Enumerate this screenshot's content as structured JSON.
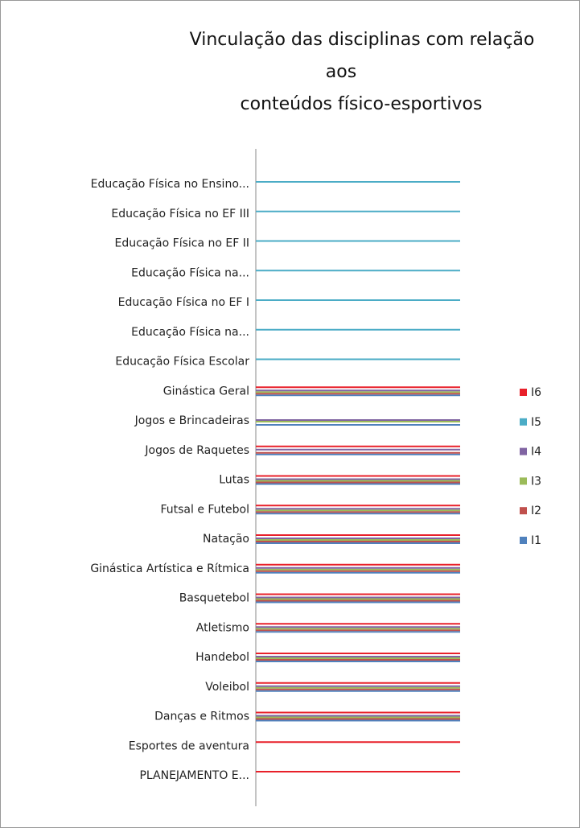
{
  "chart_data": {
    "type": "bar",
    "title": [
      "Vinculação das disciplinas com relação",
      "aos",
      "conteúdos físico-esportivos"
    ],
    "categories": [
      "Educação Física no Ensino...",
      "Educação Física no EF III",
      "Educação Física no EF II",
      "Educação Física na...",
      "Educação Física no EF I",
      "Educação Física na...",
      "Educação Física Escolar",
      "Ginástica Geral",
      "Jogos e Brincadeiras",
      "Jogos de Raquetes",
      "Lutas",
      "Futsal e Futebol",
      "Natação",
      "Ginástica Artística e Rítmica",
      "Basquetebol",
      "Atletismo",
      "Handebol",
      "Voleibol",
      "Danças e Ritmos",
      "Esportes de aventura",
      "PLANEJAMENTO E..."
    ],
    "series": [
      {
        "name": "I1",
        "color": "#4f81bd",
        "values": [
          0,
          0,
          0,
          0,
          0,
          0,
          0,
          1,
          1,
          1,
          1,
          1,
          1,
          1,
          1,
          1,
          1,
          1,
          1,
          0,
          0
        ]
      },
      {
        "name": "I2",
        "color": "#c0504d",
        "values": [
          0,
          0,
          0,
          0,
          0,
          0,
          0,
          1,
          0,
          1,
          1,
          1,
          1,
          1,
          1,
          1,
          1,
          1,
          1,
          0,
          0
        ]
      },
      {
        "name": "I3",
        "color": "#9bbb59",
        "values": [
          0,
          0,
          0,
          0,
          0,
          0,
          0,
          1,
          1,
          0,
          1,
          1,
          1,
          1,
          1,
          1,
          1,
          1,
          1,
          0,
          0
        ]
      },
      {
        "name": "I4",
        "color": "#8064a2",
        "values": [
          0,
          0,
          0,
          0,
          0,
          0,
          0,
          1,
          1,
          1,
          1,
          1,
          1,
          1,
          1,
          1,
          1,
          1,
          1,
          0,
          0
        ]
      },
      {
        "name": "I5",
        "color": "#4bacc6",
        "values": [
          1,
          1,
          1,
          1,
          1,
          1,
          1,
          0,
          0,
          0,
          0,
          0,
          0,
          0,
          0,
          0,
          0,
          0,
          0,
          0,
          0
        ]
      },
      {
        "name": "I6",
        "color": "#e8202a",
        "values": [
          0,
          0,
          0,
          0,
          0,
          0,
          0,
          1,
          0,
          1,
          1,
          1,
          1,
          1,
          1,
          1,
          1,
          1,
          1,
          1,
          1
        ]
      }
    ],
    "xlim": [
      0,
      1
    ],
    "legend": "right"
  }
}
